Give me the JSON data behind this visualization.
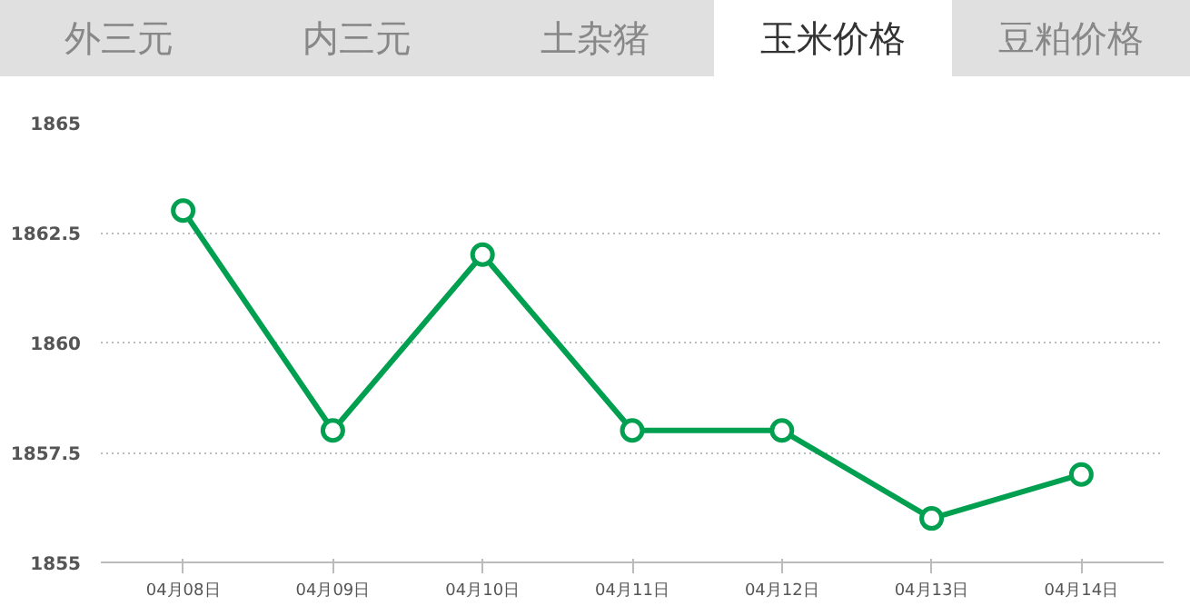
{
  "chart_data": {
    "type": "line",
    "annotations": [
      "外三元",
      "内三元",
      "土杂猪",
      "玉米价格",
      "豆粕价格"
    ],
    "categories": [
      "04月08日",
      "04月09日",
      "04月10日",
      "04月11日",
      "04月12日",
      "04月13日",
      "04月14日"
    ],
    "series": [
      {
        "color": "#00a050",
        "values": [
          1863,
          1858,
          1862,
          1858,
          1858,
          1856,
          1857
        ]
      }
    ],
    "ylim": [
      1855,
      1865
    ],
    "yticks": [
      1855,
      1857.5,
      1860,
      1862.5,
      1865
    ],
    "grid": "y",
    "marker": "circle",
    "line_style": "solid"
  }
}
